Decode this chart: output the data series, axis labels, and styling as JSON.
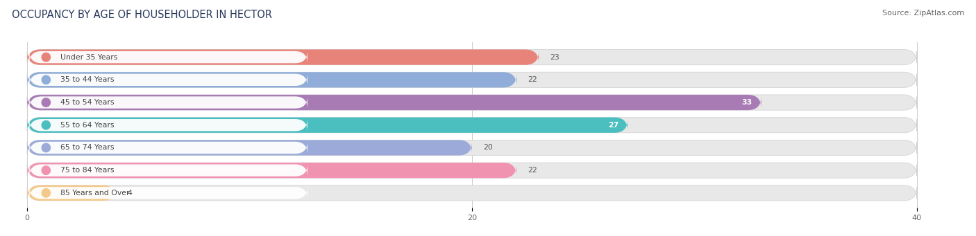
{
  "title": "OCCUPANCY BY AGE OF HOUSEHOLDER IN HECTOR",
  "source": "Source: ZipAtlas.com",
  "categories": [
    "Under 35 Years",
    "35 to 44 Years",
    "45 to 54 Years",
    "55 to 64 Years",
    "65 to 74 Years",
    "75 to 84 Years",
    "85 Years and Over"
  ],
  "values": [
    23,
    22,
    33,
    27,
    20,
    22,
    4
  ],
  "bar_colors": [
    "#E8837A",
    "#8FADD8",
    "#A87BB5",
    "#4BBFBF",
    "#9BAAD8",
    "#F093B0",
    "#F5C98A"
  ],
  "xlim_data": [
    0,
    40
  ],
  "xticks": [
    0,
    20,
    40
  ],
  "background_color": "#ffffff",
  "bar_bg_color": "#e8e8e8",
  "bar_bg_border_color": "#d0d0d0",
  "label_bg_color": "#ffffff",
  "label_text_color": "#444444",
  "title_fontsize": 10.5,
  "source_fontsize": 8,
  "bar_height": 0.68,
  "value_label_color_inside": "#ffffff",
  "value_label_color_outside": "#555555",
  "inside_label_indices": [
    2,
    3
  ]
}
